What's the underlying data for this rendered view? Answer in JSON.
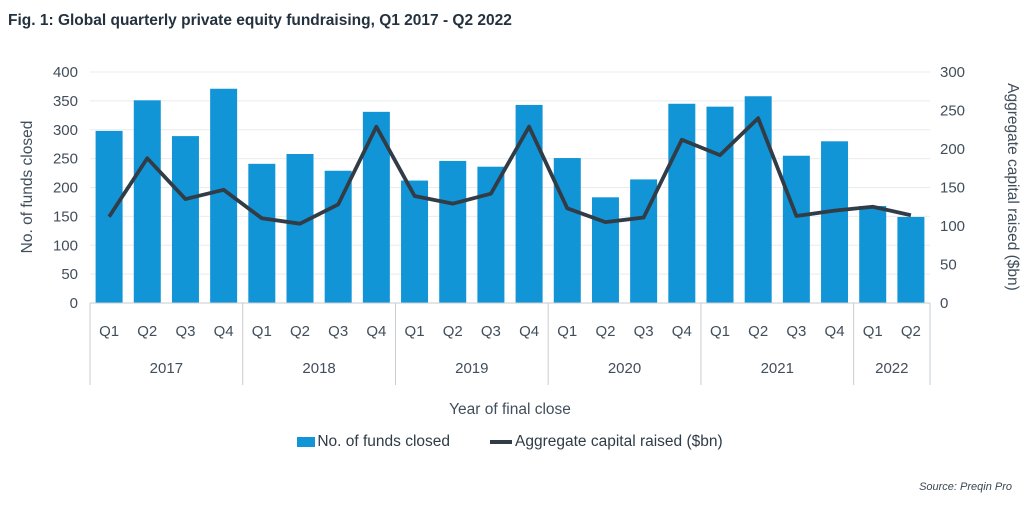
{
  "title": "Fig. 1: Global quarterly private equity fundraising, Q1 2017 - Q2 2022",
  "source": "Source: Preqin Pro",
  "chart_data": {
    "type": "combo_bar_line",
    "title": "Fig. 1: Global quarterly private equity fundraising, Q1 2017 - Q2 2022",
    "xlabel": "Year of final close",
    "grid": true,
    "legend_position": "bottom",
    "groups": [
      {
        "year": "2017",
        "quarters": [
          "Q1",
          "Q2",
          "Q3",
          "Q4"
        ]
      },
      {
        "year": "2018",
        "quarters": [
          "Q1",
          "Q2",
          "Q3",
          "Q4"
        ]
      },
      {
        "year": "2019",
        "quarters": [
          "Q1",
          "Q2",
          "Q3",
          "Q4"
        ]
      },
      {
        "year": "2020",
        "quarters": [
          "Q1",
          "Q2",
          "Q3",
          "Q4"
        ]
      },
      {
        "year": "2021",
        "quarters": [
          "Q1",
          "Q2",
          "Q3",
          "Q4"
        ]
      },
      {
        "year": "2022",
        "quarters": [
          "Q1",
          "Q2"
        ]
      }
    ],
    "left_axis": {
      "label": "No. of funds closed",
      "min": 0,
      "max": 400,
      "step": 50,
      "ticks": [
        0,
        50,
        100,
        150,
        200,
        250,
        300,
        350,
        400
      ]
    },
    "right_axis": {
      "label": "Aggregate capital raised ($bn)",
      "min": 0,
      "max": 300,
      "step": 50,
      "ticks": [
        0,
        50,
        100,
        150,
        200,
        250,
        300
      ]
    },
    "series": [
      {
        "name": "No. of funds closed",
        "type": "bar",
        "axis": "left",
        "color": "#1295d6",
        "values": [
          298,
          351,
          289,
          371,
          241,
          258,
          229,
          331,
          212,
          246,
          236,
          343,
          251,
          183,
          214,
          345,
          340,
          358,
          255,
          280,
          168,
          149
        ]
      },
      {
        "name": "Aggregate capital raised ($bn)",
        "type": "line",
        "axis": "right",
        "color": "#323c46",
        "values": [
          112,
          188,
          135,
          147,
          110,
          103,
          128,
          229,
          139,
          129,
          142,
          229,
          123,
          105,
          111,
          212,
          192,
          240,
          113,
          120,
          125,
          114
        ]
      }
    ],
    "colors": {
      "bar": "#1295d6",
      "line": "#323c46",
      "grid": "#e9ecee",
      "frame": "#c7cdd2"
    }
  }
}
